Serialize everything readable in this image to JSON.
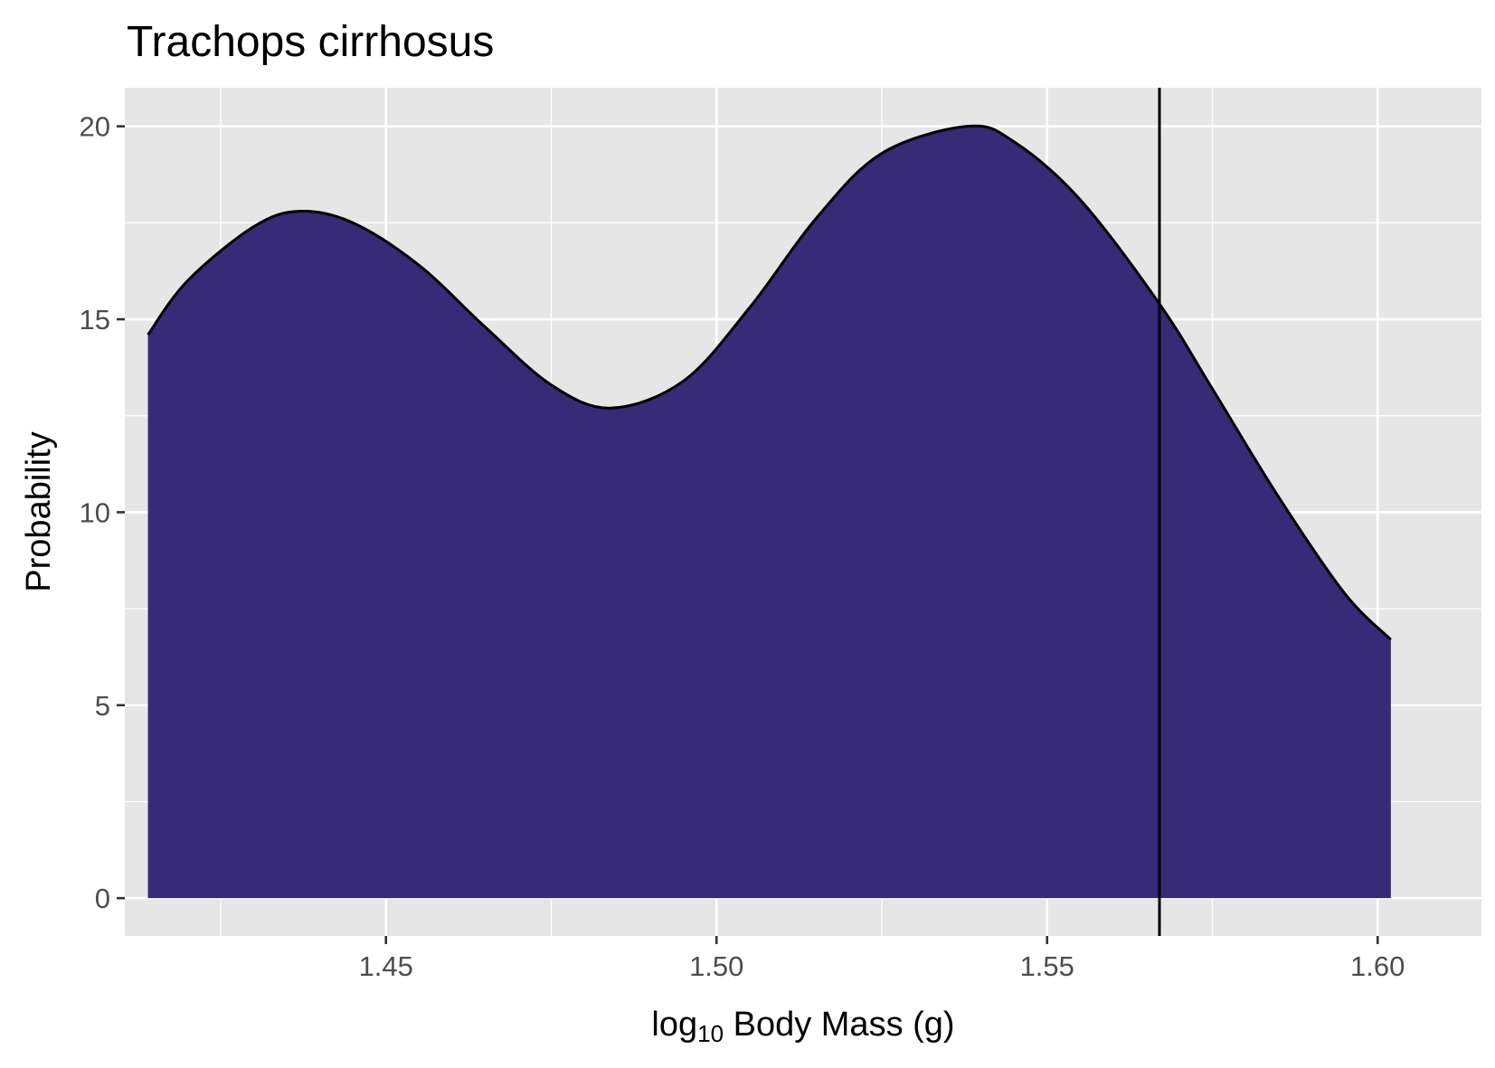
{
  "chart_data": {
    "type": "area",
    "title": "Trachops cirrhosus",
    "xlabel": {
      "prefix": "log",
      "subscript": "10",
      "suffix": " Body Mass (g)"
    },
    "ylabel": "Probability",
    "xlim": [
      1.4105,
      1.6157
    ],
    "ylim": [
      -0.98,
      21.0
    ],
    "x_ticks": [
      1.45,
      1.5,
      1.55,
      1.6
    ],
    "x_tick_labels": [
      "1.45",
      "1.50",
      "1.55",
      "1.60"
    ],
    "y_ticks": [
      0,
      5,
      10,
      15,
      20
    ],
    "y_tick_labels": [
      "0",
      "5",
      "10",
      "15",
      "20"
    ],
    "grid": true,
    "legend": "none",
    "colors": {
      "fill": "#372a77",
      "line": "#000000",
      "panel": "#e6e6e6",
      "grid": "#ffffff"
    },
    "reference_line_x": 1.567,
    "density": {
      "x": [
        1.414,
        1.42,
        1.43,
        1.437,
        1.445,
        1.455,
        1.465,
        1.475,
        1.484,
        1.495,
        1.505,
        1.515,
        1.525,
        1.538,
        1.545,
        1.555,
        1.567,
        1.575,
        1.585,
        1.595,
        1.602
      ],
      "y": [
        14.6,
        16.0,
        17.4,
        17.8,
        17.5,
        16.4,
        14.8,
        13.3,
        12.7,
        13.4,
        15.3,
        17.6,
        19.3,
        20.0,
        19.6,
        18.1,
        15.4,
        13.2,
        10.4,
        7.9,
        6.7
      ]
    }
  }
}
